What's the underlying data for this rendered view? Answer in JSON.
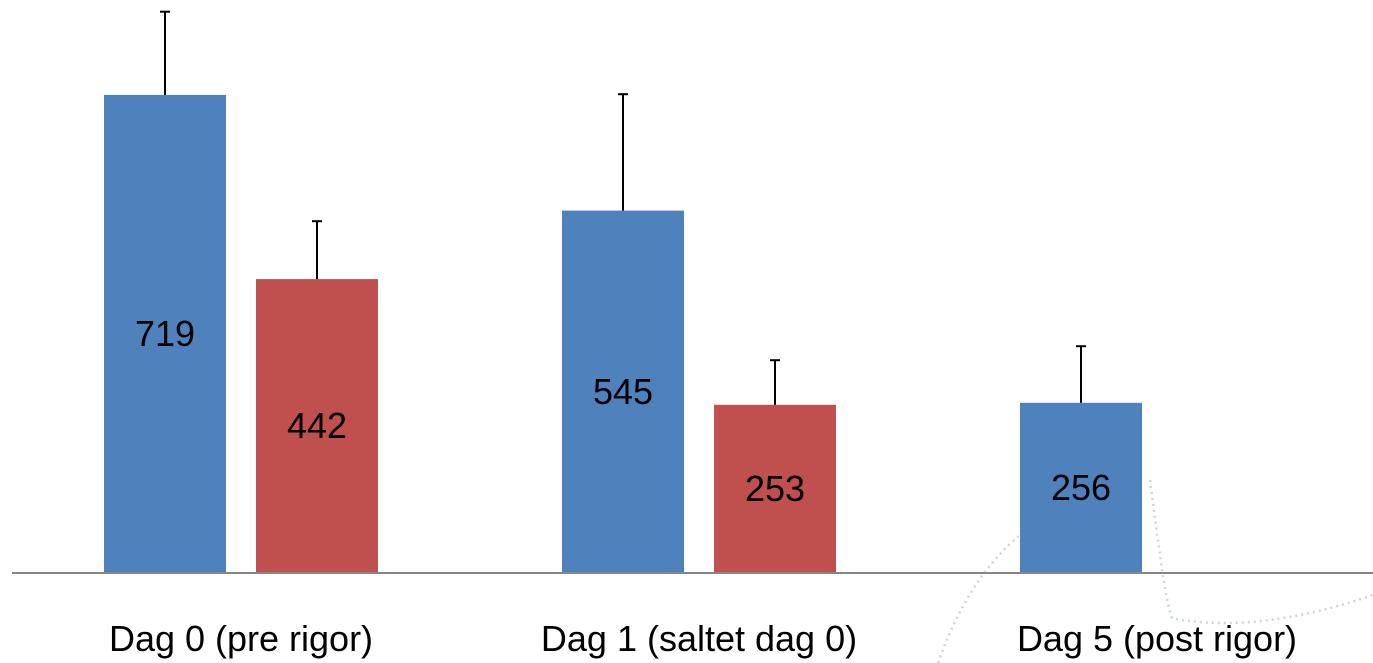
{
  "chart_data": {
    "type": "bar",
    "categories": [
      "Dag 0 (pre rigor)",
      "Dag 1 (saltet dag 0)",
      "Dag 5 (post rigor)"
    ],
    "series": [
      {
        "color": "#4F81BD",
        "values": [
          719,
          545,
          256
        ],
        "error": [
          125,
          175,
          85
        ],
        "labels": [
          "719",
          "545",
          "256"
        ]
      },
      {
        "color": "#C0504D",
        "values": [
          442,
          253,
          null
        ],
        "error": [
          87,
          67,
          null
        ],
        "labels": [
          "442",
          "253",
          ""
        ]
      }
    ],
    "ylim": [
      0,
      850
    ],
    "grid": false,
    "legend": "none",
    "axis_color": "#868686",
    "title": "",
    "xlabel": "",
    "ylabel": ""
  }
}
